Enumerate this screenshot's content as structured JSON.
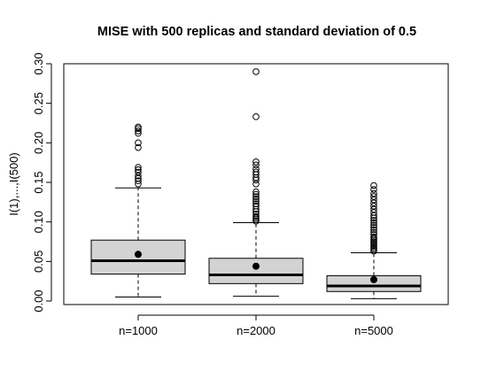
{
  "chart_data": {
    "type": "boxplot",
    "title": "MISE with 500 replicas and standard deviation of 0.5",
    "xlabel": "",
    "ylabel": "I(1),...,I(500)",
    "ylim": [
      0,
      0.3
    ],
    "yticks": [
      "0.00",
      "0.05",
      "0.10",
      "0.15",
      "0.20",
      "0.25",
      "0.30"
    ],
    "categories": [
      "n=1000",
      "n=2000",
      "n=5000"
    ],
    "boxes": [
      {
        "name": "n=1000",
        "whisker_low": 0.005,
        "q1": 0.034,
        "median": 0.051,
        "q3": 0.077,
        "whisker_high": 0.143,
        "mean": 0.059,
        "outliers": [
          0.148,
          0.152,
          0.155,
          0.158,
          0.163,
          0.166,
          0.169,
          0.194,
          0.2,
          0.212,
          0.215,
          0.218,
          0.22
        ]
      },
      {
        "name": "n=2000",
        "whisker_low": 0.006,
        "q1": 0.022,
        "median": 0.033,
        "q3": 0.054,
        "whisker_high": 0.099,
        "mean": 0.044,
        "outliers": [
          0.101,
          0.103,
          0.105,
          0.107,
          0.11,
          0.113,
          0.116,
          0.12,
          0.123,
          0.126,
          0.129,
          0.132,
          0.135,
          0.138,
          0.148,
          0.153,
          0.156,
          0.16,
          0.163,
          0.167,
          0.172,
          0.176,
          0.233,
          0.29
        ]
      },
      {
        "name": "n=5000",
        "whisker_low": 0.003,
        "q1": 0.012,
        "median": 0.019,
        "q3": 0.032,
        "whisker_high": 0.061,
        "mean": 0.027,
        "outliers": [
          0.063,
          0.065,
          0.067,
          0.069,
          0.071,
          0.073,
          0.075,
          0.077,
          0.079,
          0.081,
          0.084,
          0.087,
          0.09,
          0.093,
          0.096,
          0.099,
          0.102,
          0.105,
          0.108,
          0.112,
          0.116,
          0.12,
          0.124,
          0.128,
          0.132,
          0.136,
          0.141,
          0.146
        ]
      }
    ],
    "colors": {
      "box_fill": "#d3d3d3",
      "stroke": "#000000"
    }
  }
}
